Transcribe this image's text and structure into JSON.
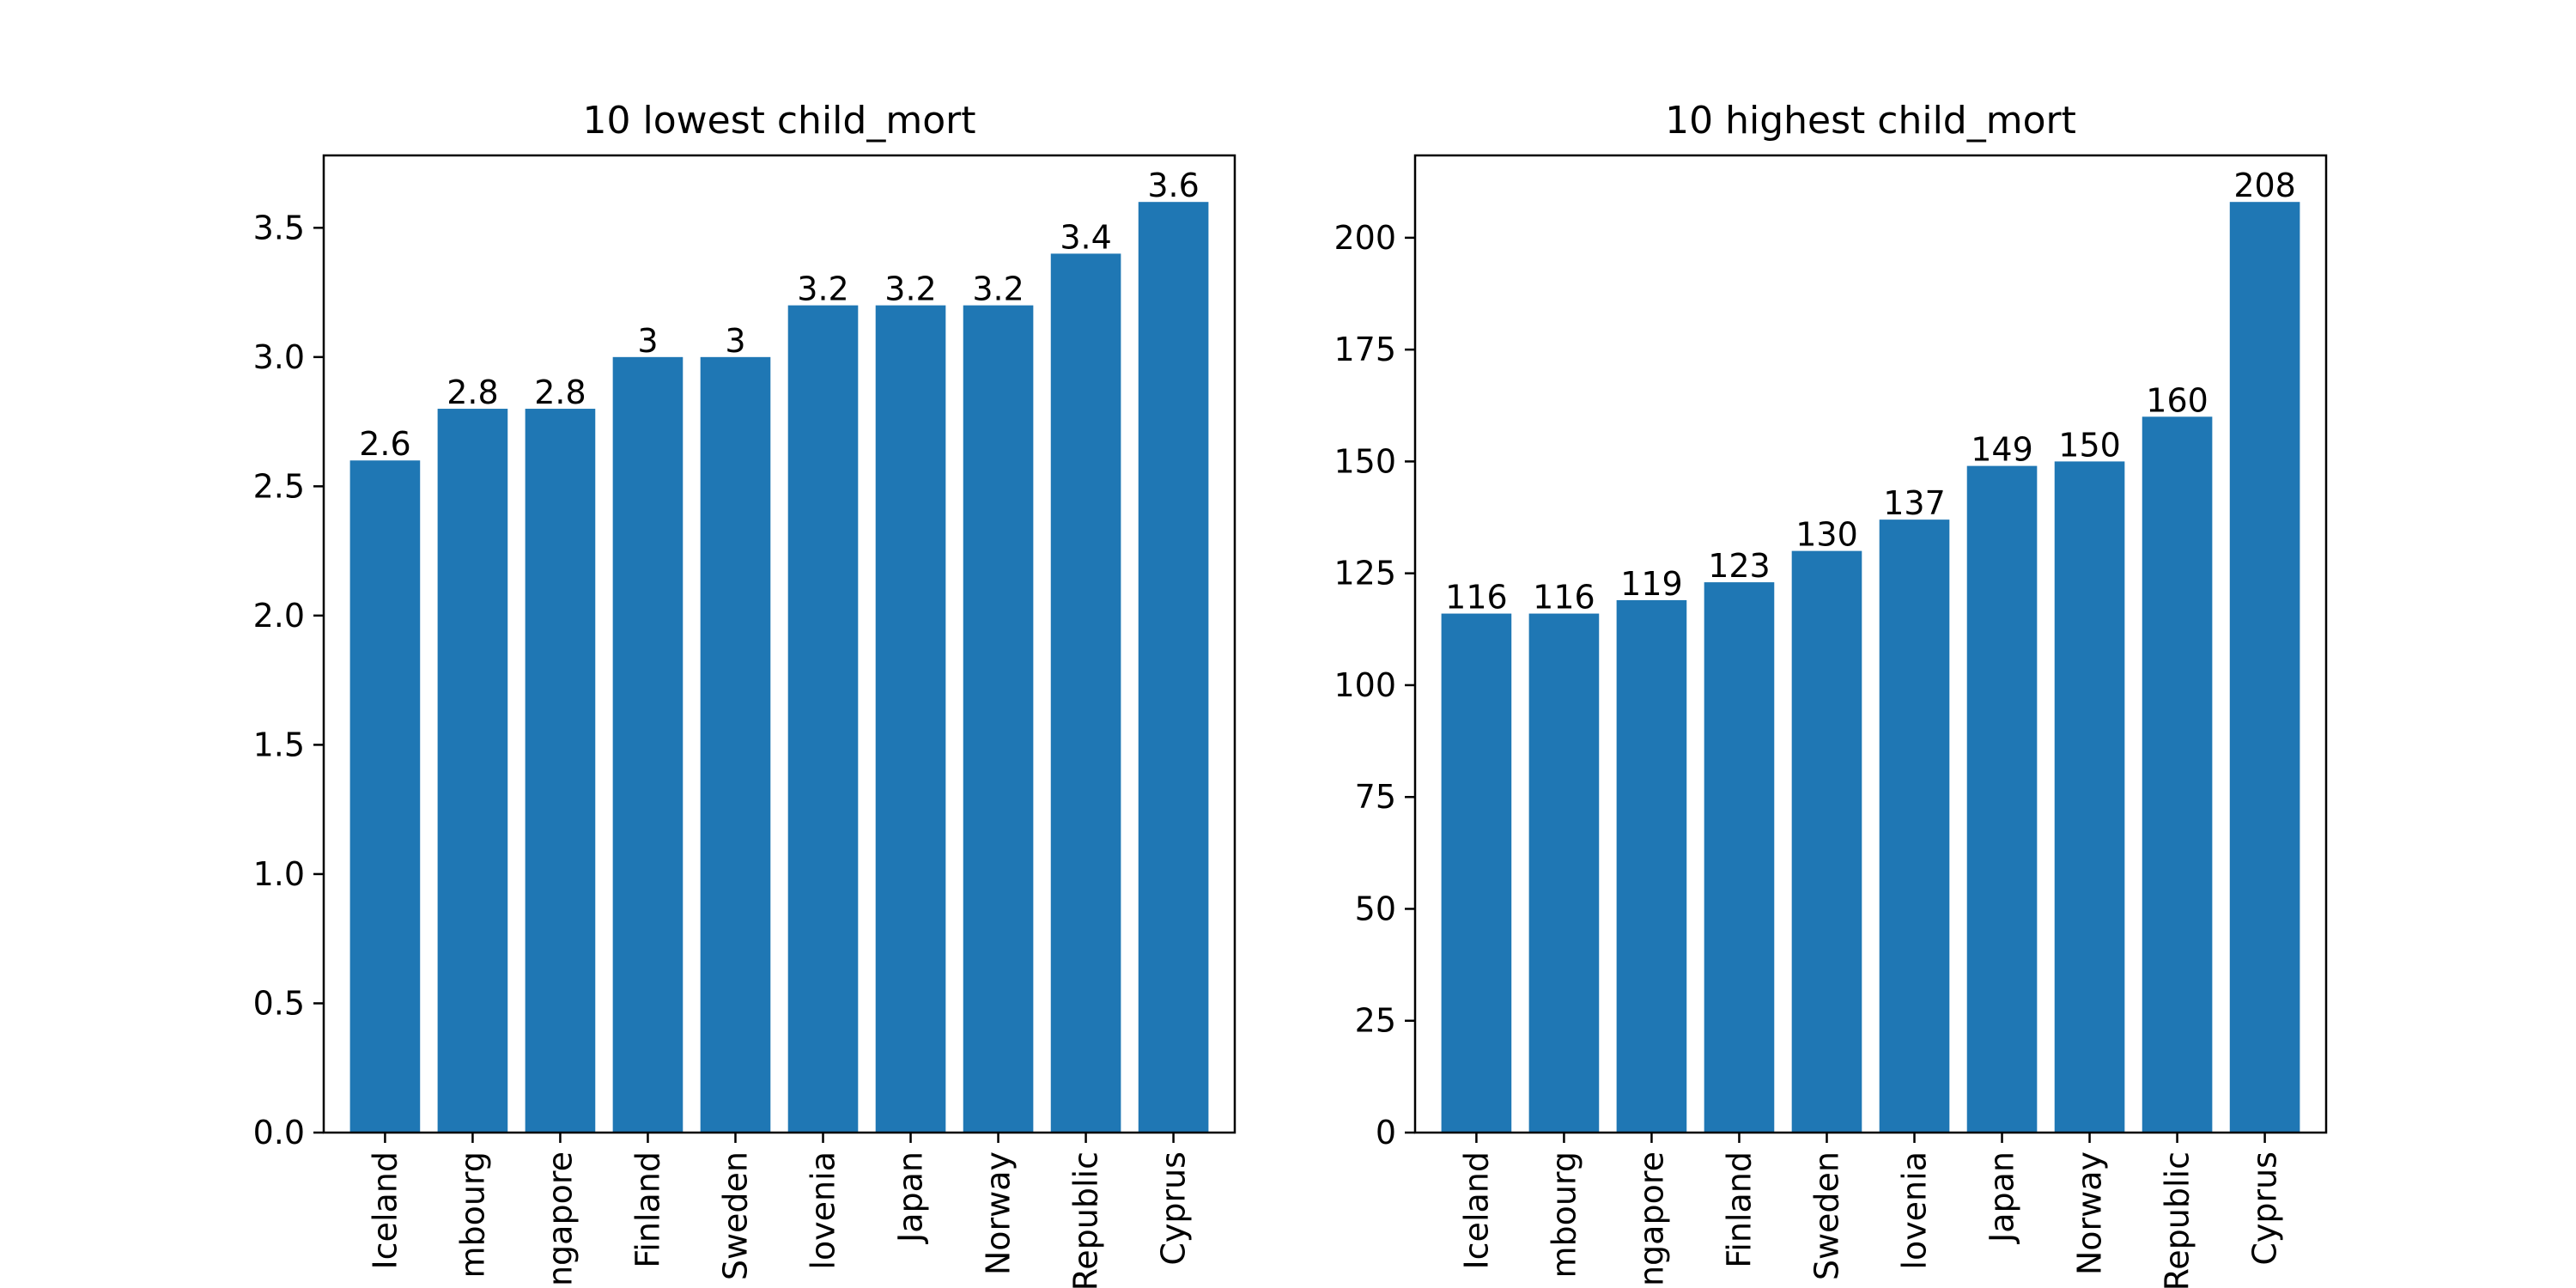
{
  "chart_data": [
    {
      "type": "bar",
      "title": "10 lowest child_mort",
      "categories": [
        "Iceland",
        "Luxembourg",
        "Singapore",
        "Finland",
        "Sweden",
        "Slovenia",
        "Japan",
        "Norway",
        "Czech Republic",
        "Cyprus"
      ],
      "visible_tick_labels": [
        "Iceland",
        "mbourg",
        "ngapore",
        "Finland",
        "Sweden",
        "lovenia",
        "Japan",
        "Norway",
        "Republic",
        "Cyprus"
      ],
      "values": [
        2.6,
        2.8,
        2.8,
        3,
        3,
        3.2,
        3.2,
        3.2,
        3.4,
        3.6
      ],
      "data_labels": [
        "2.6",
        "2.8",
        "2.8",
        "3",
        "3",
        "3.2",
        "3.2",
        "3.2",
        "3.4",
        "3.6"
      ],
      "yticks": [
        0.0,
        0.5,
        1.0,
        1.5,
        2.0,
        2.5,
        3.0,
        3.5
      ],
      "ytick_labels": [
        "0.0",
        "0.5",
        "1.0",
        "1.5",
        "2.0",
        "2.5",
        "3.0",
        "3.5"
      ],
      "ylim": [
        0,
        3.78
      ],
      "xlabel": "",
      "ylabel": "",
      "color": "#1f77b4",
      "grid": false
    },
    {
      "type": "bar",
      "title": "10 highest child_mort",
      "categories": [
        "Iceland",
        "Luxembourg",
        "Singapore",
        "Finland",
        "Sweden",
        "Slovenia",
        "Japan",
        "Norway",
        "Czech Republic",
        "Cyprus"
      ],
      "visible_tick_labels": [
        "Iceland",
        "mbourg",
        "ngapore",
        "Finland",
        "Sweden",
        "lovenia",
        "Japan",
        "Norway",
        "Republic",
        "Cyprus"
      ],
      "values": [
        116,
        116,
        119,
        123,
        130,
        137,
        149,
        150,
        160,
        208
      ],
      "data_labels": [
        "116",
        "116",
        "119",
        "123",
        "130",
        "137",
        "149",
        "150",
        "160",
        "208"
      ],
      "yticks": [
        0,
        25,
        50,
        75,
        100,
        125,
        150,
        175,
        200
      ],
      "ytick_labels": [
        "0",
        "25",
        "50",
        "75",
        "100",
        "125",
        "150",
        "175",
        "200"
      ],
      "ylim": [
        0,
        218.4
      ],
      "xlabel": "",
      "ylabel": "",
      "color": "#1f77b4",
      "grid": false
    }
  ]
}
